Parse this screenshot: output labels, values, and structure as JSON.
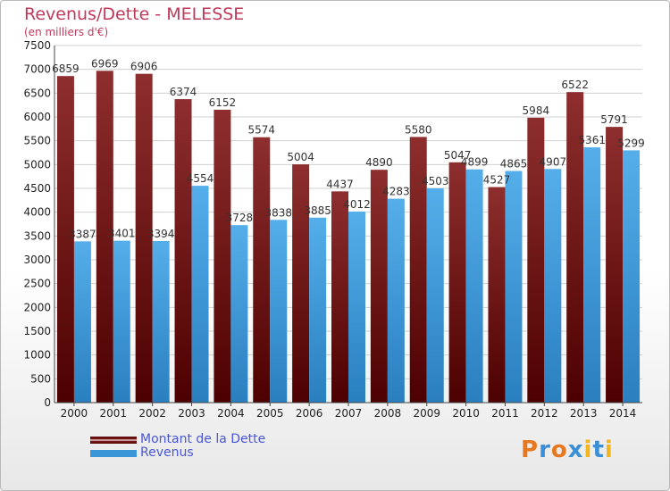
{
  "title": "Revenus/Dette - MELESSE",
  "subtitle": "(en milliers d'€)",
  "chart_data": {
    "type": "bar",
    "title": "Revenus/Dette - MELESSE",
    "subtitle": "(en milliers d'€)",
    "categories": [
      "2000",
      "2001",
      "2002",
      "2003",
      "2004",
      "2005",
      "2006",
      "2007",
      "2008",
      "2009",
      "2010",
      "2011",
      "2012",
      "2013",
      "2014"
    ],
    "series": [
      {
        "name": "Montant de la Dette",
        "color": "#7a1616",
        "values": [
          6859,
          6969,
          6906,
          6374,
          6152,
          5574,
          5004,
          4437,
          4890,
          5580,
          5047,
          4527,
          5984,
          6522,
          5791
        ]
      },
      {
        "name": "Revenus",
        "color": "#3b96d8",
        "values": [
          3387,
          3401,
          3394,
          4554,
          3728,
          3838,
          3885,
          4012,
          4283,
          4503,
          4899,
          4865,
          4907,
          5361,
          5299
        ]
      }
    ],
    "ylim": [
      0,
      7500
    ],
    "yticks": [
      0,
      500,
      1000,
      1500,
      2000,
      2500,
      3000,
      3500,
      4000,
      4500,
      5000,
      5500,
      6000,
      6500,
      7000,
      7500
    ],
    "grid": true,
    "legend_position": "bottom-left"
  },
  "legend": [
    {
      "label": "Montant de la Dette",
      "color": "#7a1616"
    },
    {
      "label": "Revenus",
      "color": "#3b96d8"
    }
  ],
  "logo": {
    "text": "Proxiti",
    "letter_colors": [
      "#e8781e",
      "#3b8fd6",
      "#e8781e",
      "#3b8fd6",
      "#f2b51c",
      "#3b8fd6",
      "#f2b51c"
    ]
  }
}
